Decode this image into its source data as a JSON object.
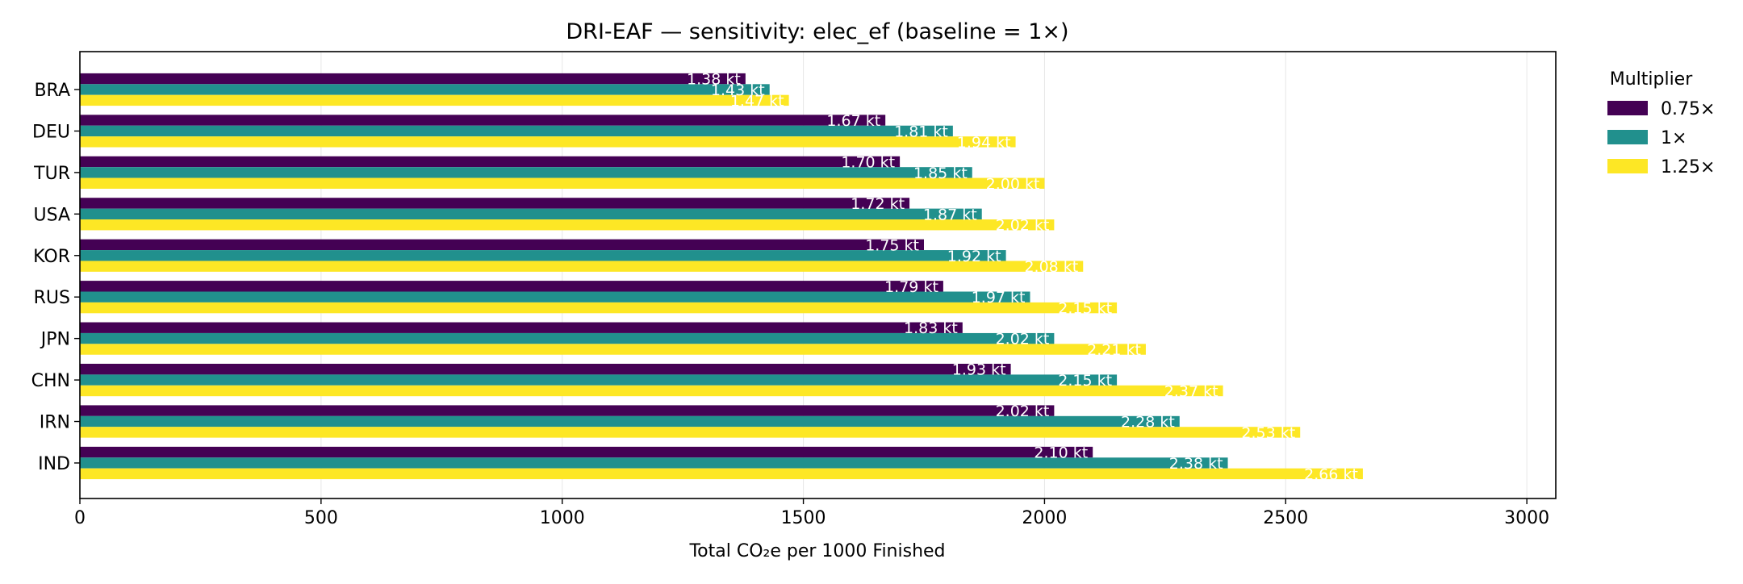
{
  "chart_data": {
    "type": "bar",
    "orientation": "horizontal",
    "title": "DRI-EAF — sensitivity: elec_ef (baseline = 1×)",
    "xlabel": "Total CO₂e per 1000 Finished",
    "ylabel": "",
    "xlim": [
      0,
      3060
    ],
    "xticks": [
      0,
      500,
      1000,
      1500,
      2000,
      2500,
      3000
    ],
    "grid": "x",
    "legend": {
      "title": "Multiplier",
      "position": "outside-right"
    },
    "categories": [
      "BRA",
      "DEU",
      "TUR",
      "USA",
      "KOR",
      "RUS",
      "JPN",
      "CHN",
      "IRN",
      "IND"
    ],
    "series": [
      {
        "name": "0.75×",
        "color": "#440154",
        "values": [
          1380,
          1670,
          1700,
          1720,
          1750,
          1790,
          1830,
          1930,
          2020,
          2100
        ],
        "labels": [
          "1.38 kt",
          "1.67 kt",
          "1.70 kt",
          "1.72 kt",
          "1.75 kt",
          "1.79 kt",
          "1.83 kt",
          "1.93 kt",
          "2.02 kt",
          "2.10 kt"
        ]
      },
      {
        "name": "1×",
        "color": "#21908d",
        "values": [
          1430,
          1810,
          1850,
          1870,
          1920,
          1970,
          2020,
          2150,
          2280,
          2380
        ],
        "labels": [
          "1.43 kt",
          "1.81 kt",
          "1.85 kt",
          "1.87 kt",
          "1.92 kt",
          "1.97 kt",
          "2.02 kt",
          "2.15 kt",
          "2.28 kt",
          "2.38 kt"
        ]
      },
      {
        "name": "1.25×",
        "color": "#fde725",
        "values": [
          1470,
          1940,
          2000,
          2020,
          2080,
          2150,
          2210,
          2370,
          2530,
          2660
        ],
        "labels": [
          "1.47 kt",
          "1.94 kt",
          "2.00 kt",
          "2.02 kt",
          "2.08 kt",
          "2.15 kt",
          "2.21 kt",
          "2.37 kt",
          "2.53 kt",
          "2.66 kt"
        ]
      }
    ]
  }
}
